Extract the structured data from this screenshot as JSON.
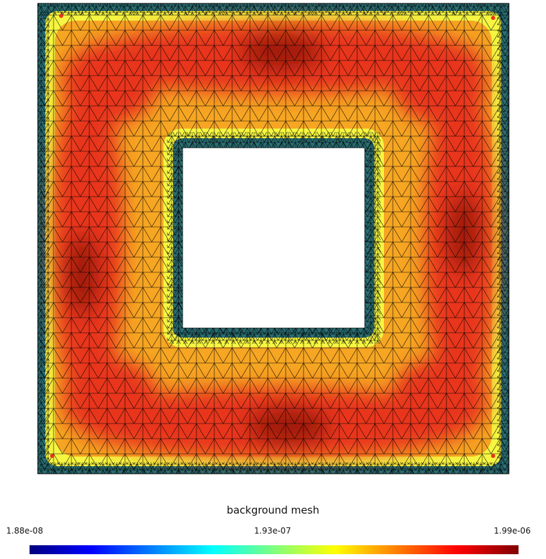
{
  "colorbar": {
    "title": "background mesh",
    "min_label": "1.88e-08",
    "mid_label": "1.93e-07",
    "max_label": "1.99e-06",
    "colormap": [
      "#00007f",
      "#0000ff",
      "#007fff",
      "#00ffff",
      "#7fff7f",
      "#ffff00",
      "#ff7f00",
      "#ff0000",
      "#7f0000"
    ]
  },
  "mesh": {
    "fill_colors": {
      "fine": "#2a6e73",
      "boundary": "#f5f542",
      "transition": "#f6a623",
      "interior": "#e8341c",
      "dense": "#a31a0d"
    },
    "edge_color": "#000000",
    "hole_color": "#ffffff"
  }
}
